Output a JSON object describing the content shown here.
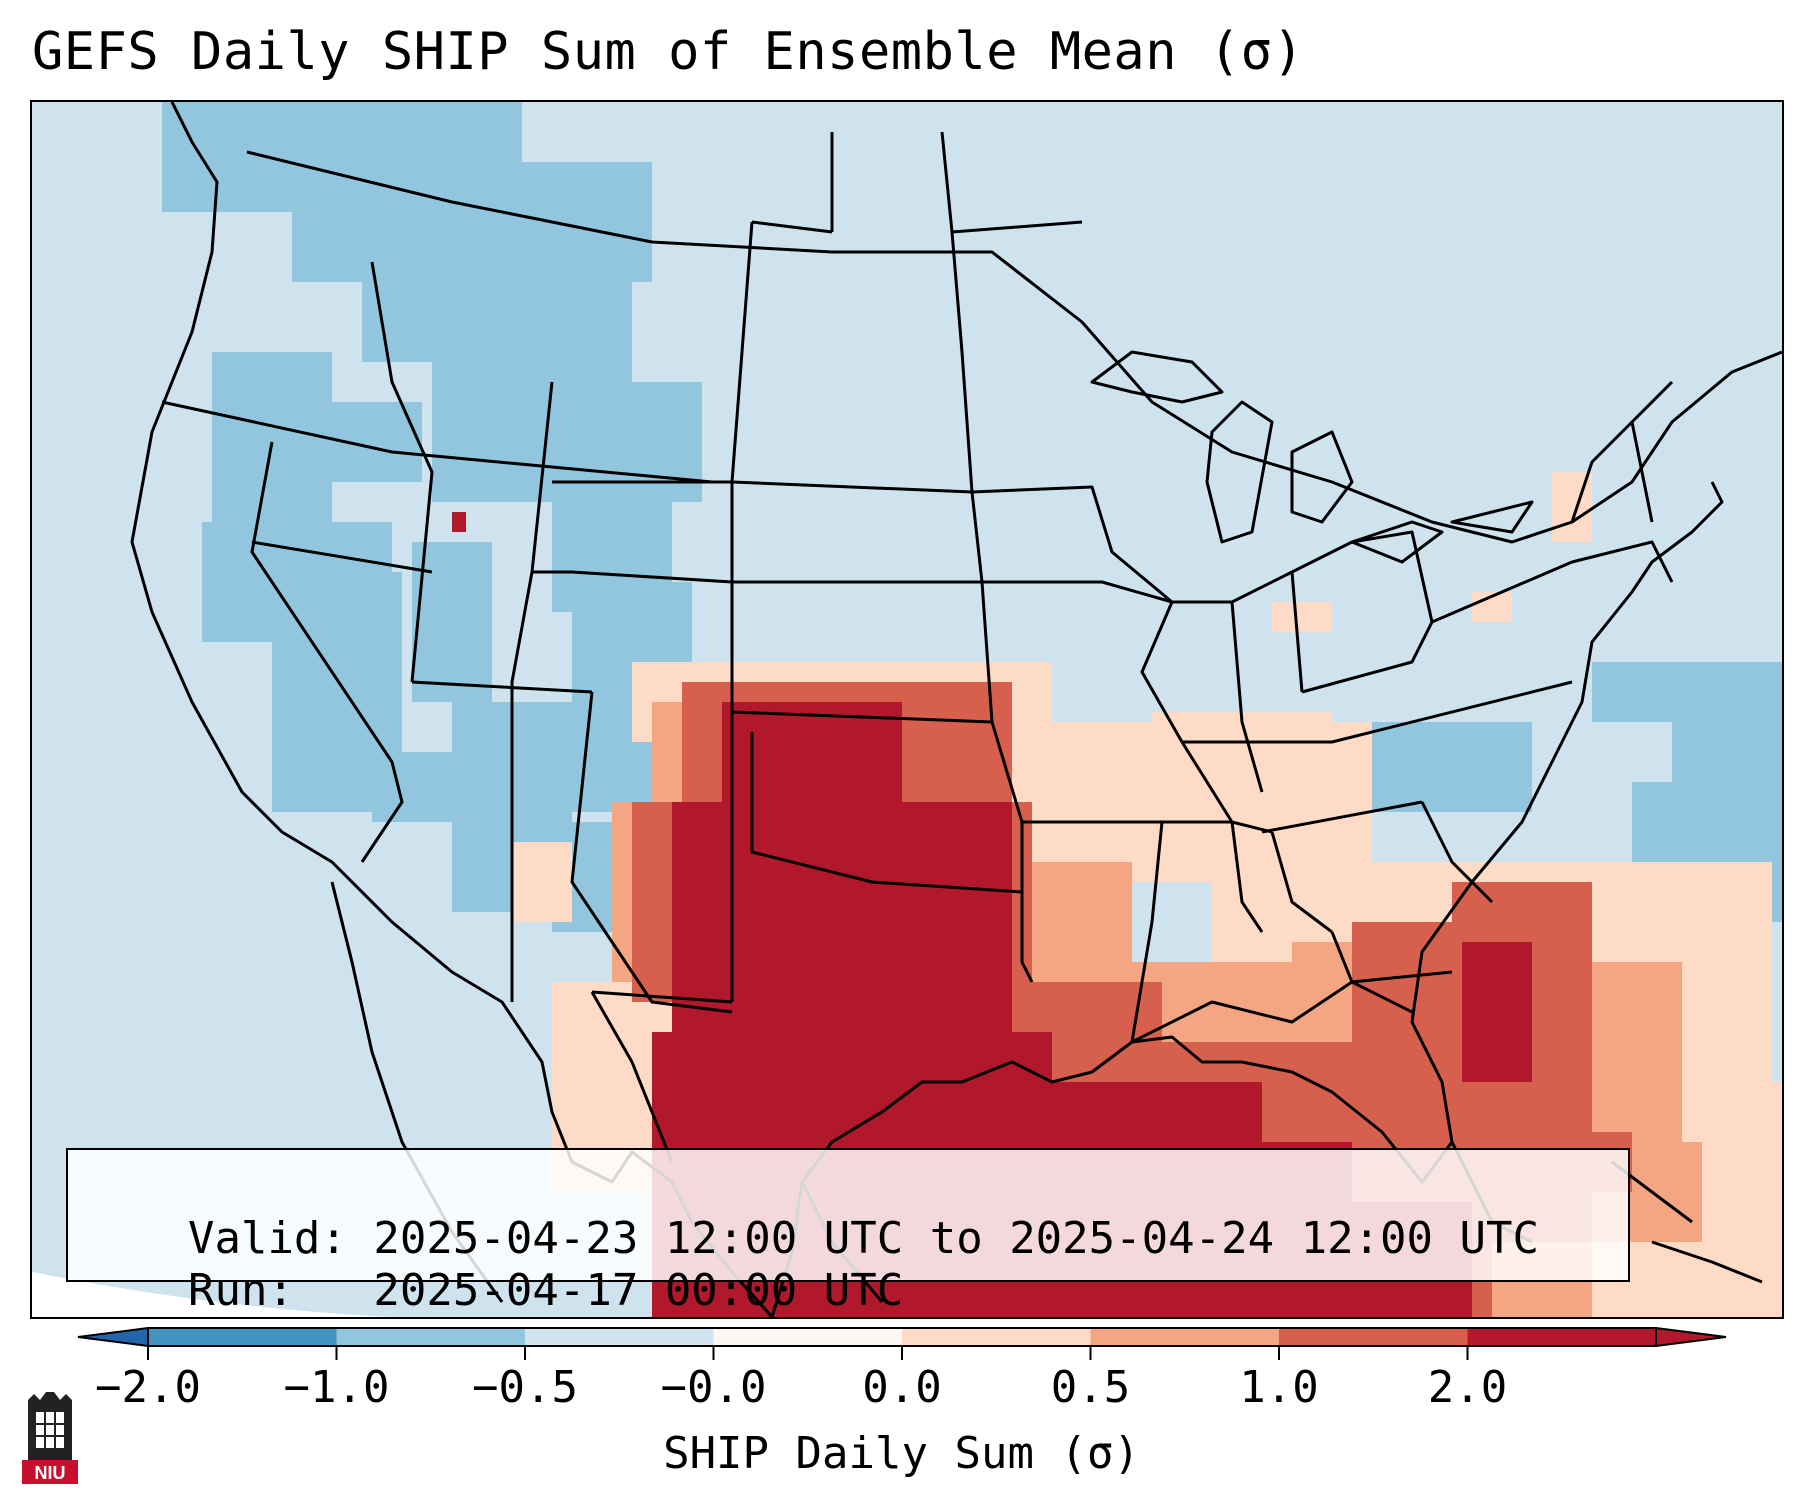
{
  "title": "GEFS Daily SHIP Sum of Ensemble Mean (σ)",
  "info": {
    "valid_label": "Valid:",
    "valid_value": "2025-04-23 12:00 UTC to 2025-04-24 12:00 UTC",
    "run_label": "Run:",
    "run_value": "2025-04-17 00:00 UTC"
  },
  "colorbar": {
    "label": "SHIP Daily Sum (σ)",
    "ticks": [
      "−2.0",
      "−1.0",
      "−0.5",
      "−0.0",
      "0.0",
      "0.5",
      "1.0",
      "2.0"
    ],
    "colors": [
      "#4393c3",
      "#92c5de",
      "#d1e5f0",
      "#fbf8f3",
      "#fddbc7",
      "#f4a582",
      "#d6604d",
      "#b2182b"
    ],
    "extend": "both",
    "extend_min_color": "#2166ac",
    "extend_max_color": "#b2182b"
  },
  "map": {
    "region": "Contiguous United States",
    "projection": "Lambert Conformal",
    "background_color": "#cfe3ef",
    "features": [
      "state-borders",
      "country-borders",
      "coastlines"
    ]
  },
  "logo": {
    "text": "NIU",
    "color": "#c8102e"
  }
}
